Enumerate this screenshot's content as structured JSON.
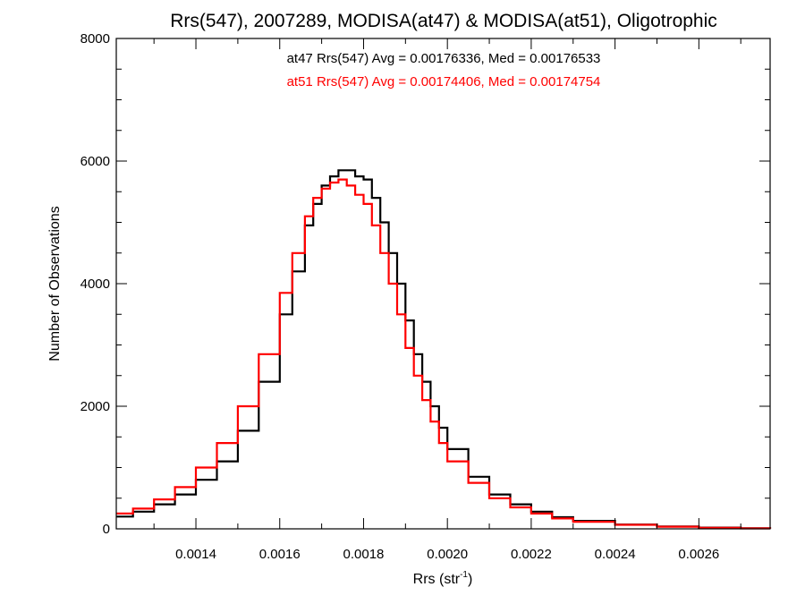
{
  "chart_data": {
    "type": "line",
    "title": "Rrs(547), 2007289, MODISA(at47) & MODISA(at51), Oligotrophic",
    "xlabel_main": "Rrs (str",
    "xlabel_sup": "-1",
    "xlabel_close": ")",
    "ylabel": "Number of Observations",
    "xlim": [
      0.00121,
      0.00277
    ],
    "ylim": [
      0,
      8000
    ],
    "x_ticks": [
      0.0014,
      0.0016,
      0.0018,
      0.002,
      0.0022,
      0.0024,
      0.0026
    ],
    "x_tick_labels": [
      "0.0014",
      "0.0016",
      "0.0018",
      "0.0020",
      "0.0022",
      "0.0024",
      "0.0026"
    ],
    "y_ticks": [
      0,
      2000,
      4000,
      6000,
      8000
    ],
    "y_tick_labels": [
      "0",
      "2000",
      "4000",
      "6000",
      "8000"
    ],
    "grid": false,
    "annotations": [
      {
        "text": "at47 Rrs(547) Avg = 0.00176336, Med = 0.00176533",
        "color": "#000000"
      },
      {
        "text": "at51 Rrs(547) Avg = 0.00174406, Med = 0.00174754",
        "color": "#ff0000"
      }
    ],
    "series": [
      {
        "color": "#000000",
        "x": [
          0.00121,
          0.00125,
          0.0013,
          0.00135,
          0.0014,
          0.00145,
          0.0015,
          0.00155,
          0.0016,
          0.00163,
          0.00166,
          0.00168,
          0.0017,
          0.00172,
          0.00174,
          0.00176,
          0.00178,
          0.0018,
          0.00182,
          0.00184,
          0.00186,
          0.00188,
          0.0019,
          0.00192,
          0.00194,
          0.00196,
          0.00198,
          0.002,
          0.00205,
          0.0021,
          0.00215,
          0.0022,
          0.00225,
          0.0023,
          0.0024,
          0.0025,
          0.0026,
          0.0027,
          0.00277
        ],
        "y": [
          200,
          280,
          400,
          560,
          800,
          1100,
          1600,
          2400,
          3500,
          4200,
          4950,
          5300,
          5600,
          5750,
          5850,
          5850,
          5750,
          5700,
          5400,
          5000,
          4500,
          4000,
          3400,
          2850,
          2400,
          2000,
          1650,
          1300,
          850,
          560,
          400,
          280,
          190,
          130,
          70,
          40,
          20,
          10,
          5
        ]
      },
      {
        "color": "#ff0000",
        "x": [
          0.00121,
          0.00125,
          0.0013,
          0.00135,
          0.0014,
          0.00145,
          0.0015,
          0.00155,
          0.0016,
          0.00163,
          0.00166,
          0.00168,
          0.0017,
          0.00172,
          0.00174,
          0.00176,
          0.00178,
          0.0018,
          0.00182,
          0.00184,
          0.00186,
          0.00188,
          0.0019,
          0.00192,
          0.00194,
          0.00196,
          0.00198,
          0.002,
          0.00205,
          0.0021,
          0.00215,
          0.0022,
          0.00225,
          0.0023,
          0.0024,
          0.0025,
          0.0026,
          0.0027,
          0.00277
        ],
        "y": [
          250,
          330,
          480,
          680,
          1000,
          1400,
          2000,
          2850,
          3850,
          4500,
          5100,
          5400,
          5550,
          5650,
          5700,
          5600,
          5450,
          5300,
          4950,
          4500,
          4000,
          3500,
          2950,
          2500,
          2100,
          1750,
          1400,
          1100,
          750,
          500,
          350,
          250,
          170,
          115,
          65,
          35,
          18,
          8,
          4
        ]
      }
    ]
  }
}
